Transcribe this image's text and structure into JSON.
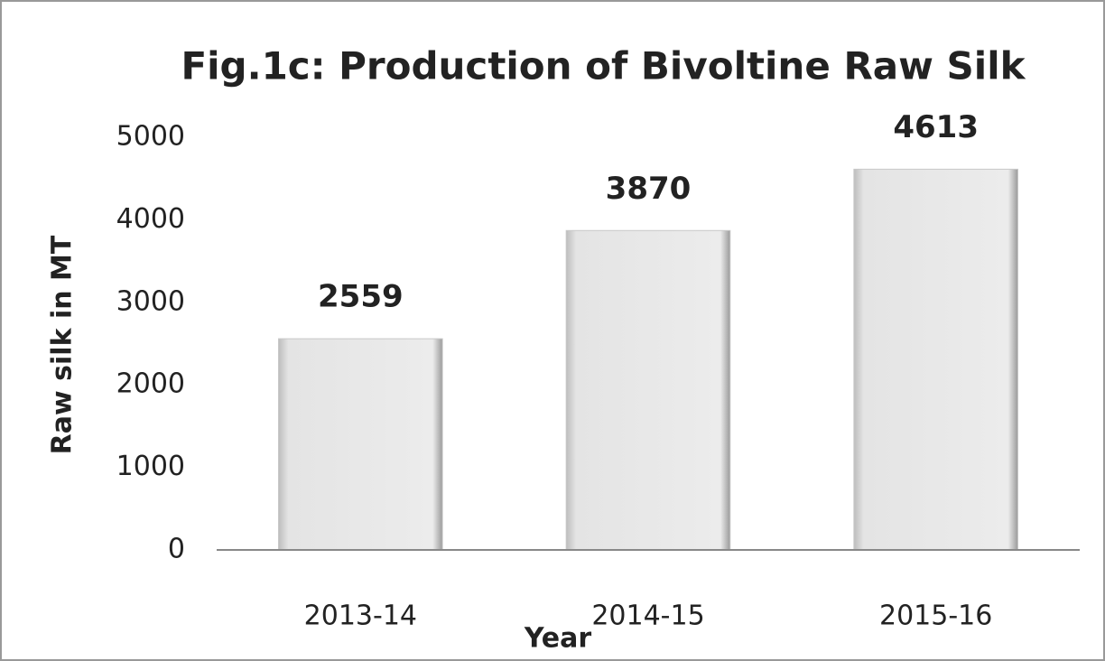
{
  "chart_data": {
    "type": "bar",
    "title": "Fig.1c: Production of Bivoltine Raw Silk",
    "x_label": "Year",
    "y_label": "Raw silk in MT",
    "categories": [
      "2013-14",
      "2014-15",
      "2015-16"
    ],
    "values": [
      2559,
      3870,
      4613
    ],
    "color": "#e6e6e6",
    "ylim": [
      0,
      5000
    ],
    "yticks": [
      0,
      1000,
      2000,
      3000,
      4000,
      5000
    ],
    "grid": false
  }
}
